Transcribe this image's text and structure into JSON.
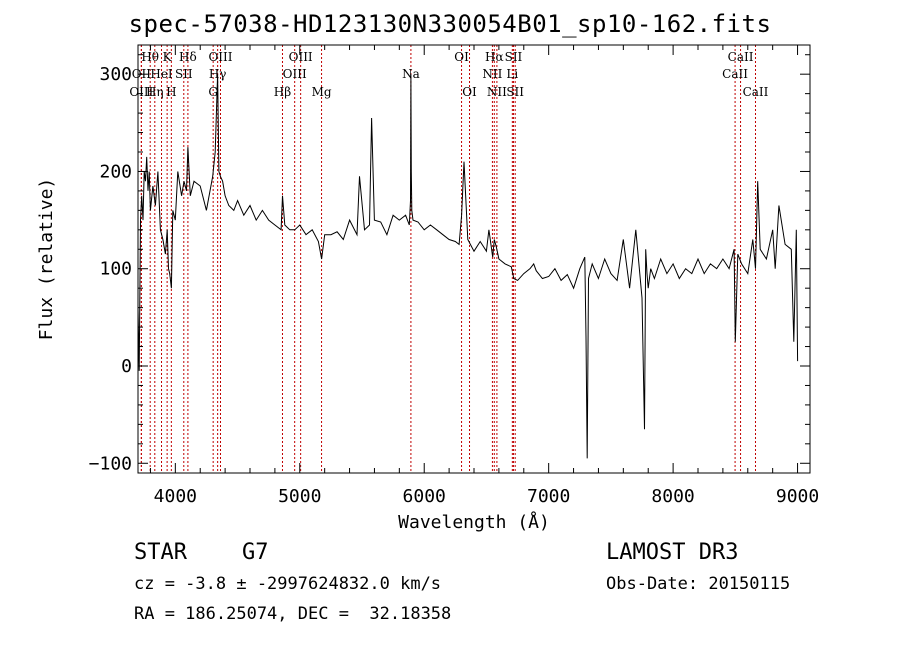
{
  "chart_data": {
    "type": "line",
    "title": "spec-57038-HD123130N330054B01_sp10-162.fits",
    "xlabel": "Wavelength (Å)",
    "ylabel": "Flux (relative)",
    "xlim": [
      3700,
      9100
    ],
    "ylim": [
      -110,
      330
    ],
    "xticks": [
      4000,
      5000,
      6000,
      7000,
      8000,
      9000
    ],
    "yticks": [
      -100,
      0,
      100,
      200,
      300
    ],
    "ytick_labels": [
      "−100",
      "0",
      "100",
      "200",
      "300"
    ],
    "grid": false,
    "series": [
      {
        "name": "flux",
        "x": [
          3700,
          3710,
          3720,
          3730,
          3740,
          3750,
          3760,
          3770,
          3780,
          3790,
          3800,
          3820,
          3840,
          3860,
          3880,
          3900,
          3920,
          3935,
          3945,
          3955,
          3968,
          3980,
          4000,
          4020,
          4050,
          4070,
          4090,
          4101,
          4120,
          4150,
          4200,
          4250,
          4300,
          4320,
          4340,
          4350,
          4362,
          4380,
          4400,
          4430,
          4470,
          4500,
          4550,
          4600,
          4650,
          4700,
          4750,
          4800,
          4850,
          4861,
          4880,
          4920,
          4960,
          5000,
          5050,
          5100,
          5150,
          5175,
          5200,
          5250,
          5300,
          5350,
          5400,
          5460,
          5480,
          5520,
          5560,
          5577,
          5600,
          5650,
          5700,
          5750,
          5800,
          5850,
          5880,
          5890,
          5893,
          5896,
          5900,
          5910,
          5950,
          6000,
          6050,
          6100,
          6150,
          6200,
          6250,
          6280,
          6300,
          6320,
          6350,
          6400,
          6450,
          6500,
          6520,
          6550,
          6563,
          6580,
          6600,
          6650,
          6700,
          6720,
          6750,
          6800,
          6850,
          6880,
          6900,
          6950,
          7000,
          7050,
          7100,
          7150,
          7200,
          7250,
          7290,
          7300,
          7310,
          7320,
          7350,
          7400,
          7450,
          7500,
          7550,
          7600,
          7650,
          7700,
          7750,
          7770,
          7780,
          7790,
          7800,
          7820,
          7850,
          7900,
          7950,
          8000,
          8050,
          8100,
          8150,
          8200,
          8250,
          8300,
          8350,
          8400,
          8450,
          8490,
          8500,
          8520,
          8550,
          8600,
          8640,
          8662,
          8680,
          8700,
          8750,
          8800,
          8820,
          8850,
          8900,
          8950,
          8970,
          8990,
          9000
        ],
        "y": [
          60,
          -5,
          150,
          175,
          150,
          200,
          190,
          215,
          180,
          200,
          160,
          185,
          165,
          200,
          140,
          130,
          115,
          140,
          100,
          95,
          80,
          160,
          150,
          200,
          175,
          190,
          180,
          225,
          175,
          190,
          185,
          160,
          195,
          220,
          300,
          200,
          195,
          190,
          175,
          165,
          160,
          170,
          155,
          165,
          150,
          160,
          150,
          145,
          140,
          175,
          145,
          140,
          140,
          145,
          135,
          140,
          128,
          110,
          135,
          135,
          138,
          130,
          150,
          135,
          195,
          140,
          145,
          255,
          150,
          148,
          135,
          155,
          150,
          155,
          145,
          170,
          300,
          200,
          160,
          150,
          148,
          140,
          145,
          140,
          135,
          130,
          128,
          125,
          155,
          210,
          130,
          118,
          128,
          118,
          140,
          112,
          130,
          122,
          110,
          105,
          102,
          90,
          88,
          95,
          100,
          105,
          98,
          90,
          92,
          100,
          88,
          94,
          80,
          100,
          112,
          30,
          -95,
          90,
          105,
          90,
          110,
          95,
          88,
          130,
          80,
          140,
          70,
          -65,
          120,
          95,
          80,
          100,
          90,
          110,
          95,
          105,
          90,
          100,
          95,
          110,
          95,
          105,
          100,
          110,
          100,
          120,
          25,
          115,
          105,
          95,
          130,
          100,
          190,
          120,
          110,
          140,
          100,
          165,
          125,
          120,
          25,
          140,
          5
        ]
      }
    ],
    "line_markers": [
      {
        "label": "Hθ",
        "x": 3798,
        "row": 1
      },
      {
        "label": "OII",
        "x": 3727,
        "row": 2
      },
      {
        "label": "OIII",
        "x": 3727,
        "row": 3
      },
      {
        "label": "Hη",
        "x": 3835,
        "row": 3
      },
      {
        "label": "HeI",
        "x": 3889,
        "row": 2
      },
      {
        "label": "K",
        "x": 3934,
        "row": 1
      },
      {
        "label": "H",
        "x": 3968,
        "row": 3
      },
      {
        "label": "SII",
        "x": 4068,
        "row": 2
      },
      {
        "label": "Hδ",
        "x": 4101,
        "row": 1
      },
      {
        "label": "OIII",
        "x": 4363,
        "row": 1
      },
      {
        "label": "Hγ",
        "x": 4340,
        "row": 2
      },
      {
        "label": "G",
        "x": 4304,
        "row": 3
      },
      {
        "label": "Hβ",
        "x": 4861,
        "row": 3
      },
      {
        "label": "OIII",
        "x": 5007,
        "row": 1
      },
      {
        "label": "OIII",
        "x": 4959,
        "row": 2
      },
      {
        "label": "Mg",
        "x": 5175,
        "row": 3
      },
      {
        "label": "Na",
        "x": 5893,
        "row": 2
      },
      {
        "label": "OI",
        "x": 6300,
        "row": 1
      },
      {
        "label": "OI",
        "x": 6364,
        "row": 3
      },
      {
        "label": "Hα",
        "x": 6563,
        "row": 1
      },
      {
        "label": "NII",
        "x": 6548,
        "row": 2
      },
      {
        "label": "NII",
        "x": 6584,
        "row": 3
      },
      {
        "label": "SII",
        "x": 6717,
        "row": 1
      },
      {
        "label": "Li",
        "x": 6708,
        "row": 2
      },
      {
        "label": "SII",
        "x": 6731,
        "row": 3
      },
      {
        "label": "CaII",
        "x": 8542,
        "row": 1
      },
      {
        "label": "CaII",
        "x": 8498,
        "row": 2
      },
      {
        "label": "CaII",
        "x": 8662,
        "row": 3
      }
    ]
  },
  "footer": {
    "object_class": "STAR",
    "subclass": "G7",
    "survey": "LAMOST DR3",
    "cz_line": "cz = -3.8 ± -2997624832.0 km/s",
    "obs_date_line": "Obs-Date: 20150115",
    "coords_line": "RA = 186.25074, DEC =  32.18358"
  }
}
